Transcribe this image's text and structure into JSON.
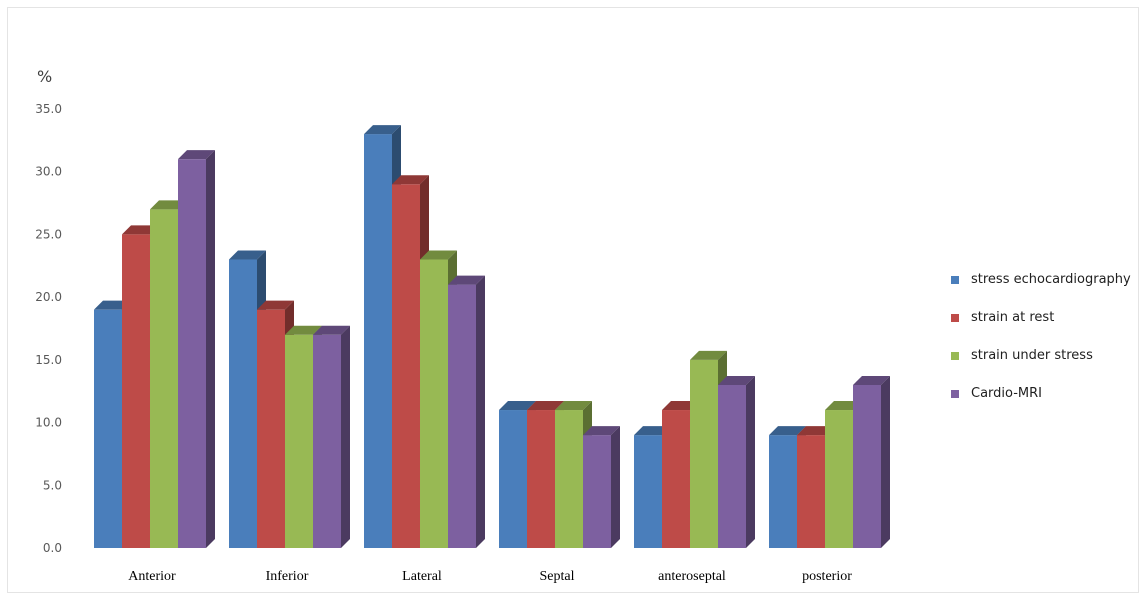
{
  "chart_data": {
    "type": "bar",
    "ylabel": "%",
    "ylim": [
      0,
      35
    ],
    "yticks": [
      "0.0",
      "5.0",
      "10.0",
      "15.0",
      "20.0",
      "25.0",
      "30.0",
      "35.0"
    ],
    "categories": [
      "Anterior",
      "Inferior",
      "Lateral",
      "Septal",
      "anteroseptal",
      "posterior"
    ],
    "series": [
      {
        "name": "stress echocardiography",
        "color": "#4a7ebb",
        "values": [
          19,
          23,
          33,
          11,
          9,
          9
        ]
      },
      {
        "name": "strain at rest",
        "color": "#be4b48",
        "values": [
          25,
          19,
          29,
          11,
          11,
          9
        ]
      },
      {
        "name": "strain under stress",
        "color": "#98b954",
        "values": [
          27,
          17,
          23,
          11,
          15,
          11
        ]
      },
      {
        "name": "Cardio-MRI",
        "color": "#7d60a0",
        "values": [
          31,
          17,
          21,
          9,
          13,
          13
        ]
      }
    ],
    "legend_position": "right",
    "grid": false,
    "style": "3d-clustered-column"
  }
}
